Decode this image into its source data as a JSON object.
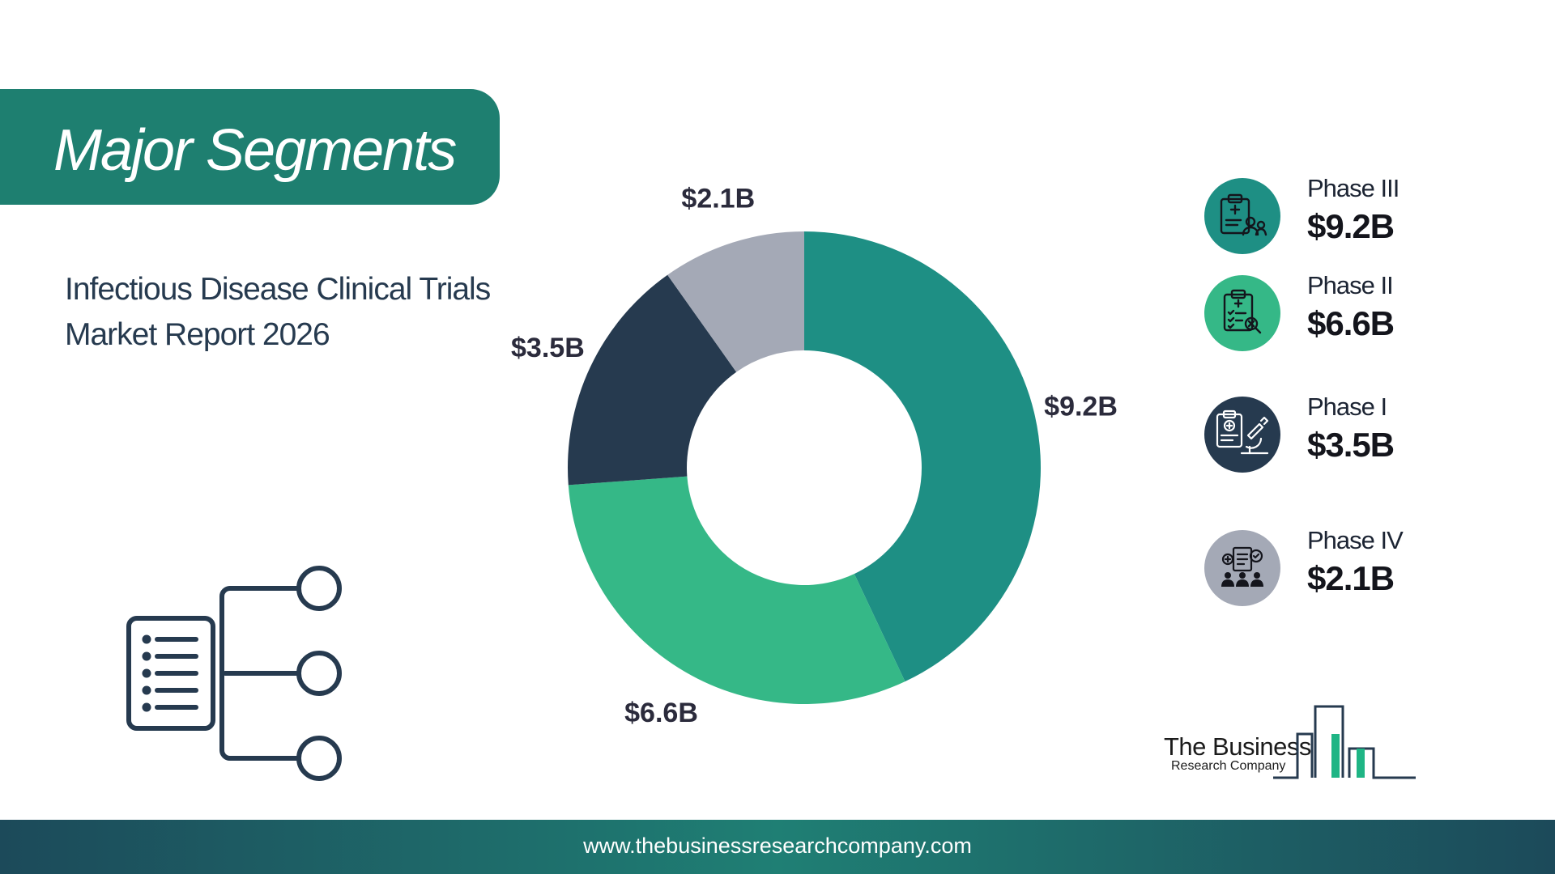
{
  "header": {
    "title": "Major Segments"
  },
  "report": {
    "title_line1": "Infectious Disease Clinical Trials",
    "title_line2": "Market Report 2026"
  },
  "chart_data": {
    "type": "pie",
    "donut": true,
    "categories": [
      "Phase III",
      "Phase II",
      "Phase I",
      "Phase IV"
    ],
    "values": [
      9.2,
      6.6,
      3.5,
      2.1
    ],
    "data_labels": [
      "$9.2B",
      "$6.6B",
      "$3.5B",
      "$2.1B"
    ],
    "unit": "$B",
    "colors": [
      "#1e8f84",
      "#35b887",
      "#263a4f",
      "#a4a9b6"
    ],
    "title": "",
    "legend_position": "right"
  },
  "legend": {
    "items": [
      {
        "name": "Phase III",
        "value": "$9.2B",
        "icon": "clipboard-team-icon",
        "color": "#1e8f84"
      },
      {
        "name": "Phase II",
        "value": "$6.6B",
        "icon": "checklist-search-icon",
        "color": "#35b887"
      },
      {
        "name": "Phase I",
        "value": "$3.5B",
        "icon": "microscope-report-icon",
        "color": "#263a4f"
      },
      {
        "name": "Phase IV",
        "value": "$2.1B",
        "icon": "participants-review-icon",
        "color": "#a4a9b6"
      }
    ]
  },
  "logo": {
    "line1": "The Business",
    "line2": "Research Company",
    "accent": "#1fb585"
  },
  "footer": {
    "url": "www.thebusinessresearchcompany.com"
  }
}
